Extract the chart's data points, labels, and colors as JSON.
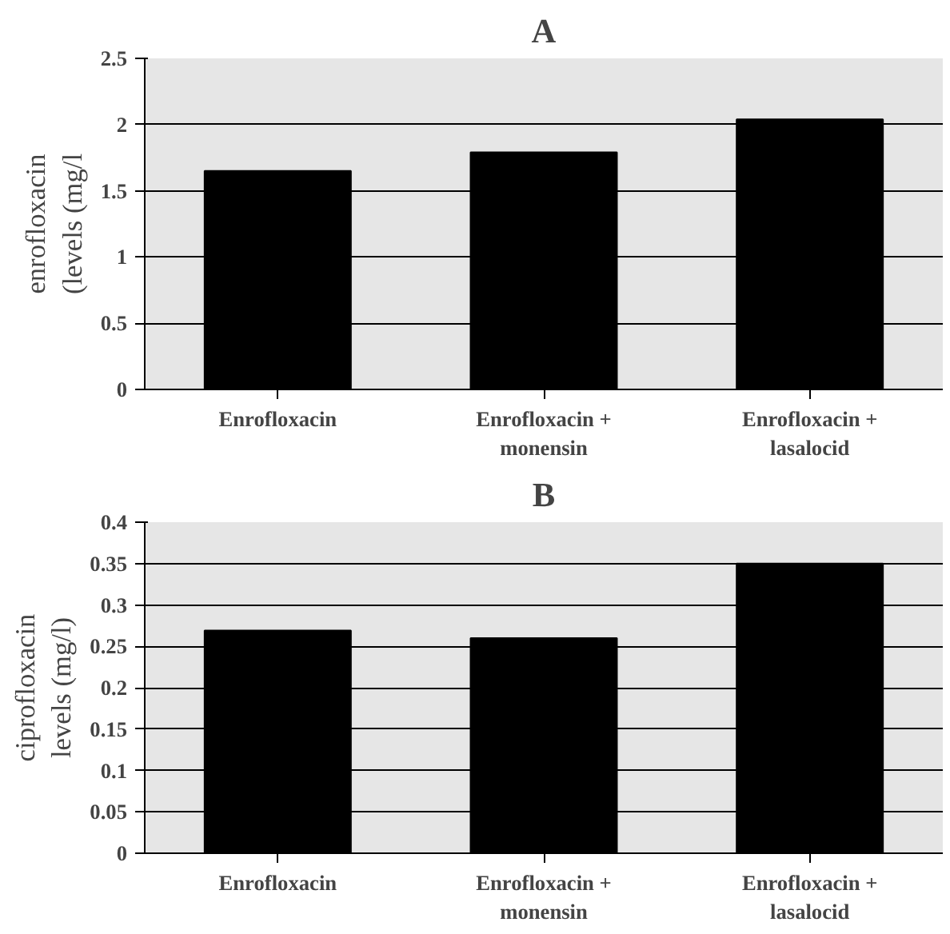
{
  "chart_data": [
    {
      "type": "bar",
      "title": "A",
      "ylabel": "enrofloxacin\n(levels (mg/l",
      "categories": [
        "Enrofloxacin",
        "Enrofloxacin +\nmonensin",
        "Enrofloxacin +\nlasalocid"
      ],
      "values": [
        1.65,
        1.79,
        2.04
      ],
      "color": "#000000",
      "ylim": [
        0,
        2.5
      ],
      "yticks": [
        0,
        0.5,
        1,
        {
          "value": 1.5,
          "label": "1.5"
        },
        2,
        {
          "value": 2.5,
          "label": "2.5"
        }
      ],
      "grid": "y"
    },
    {
      "type": "bar",
      "title": "B",
      "ylabel": "ciprofloxacin\nlevels (mg/l)",
      "categories": [
        "Enrofloxacin",
        "Enrofloxacin +\nmonensin",
        "Enrofloxacin +\nlasalocid"
      ],
      "values": [
        0.269,
        0.26,
        0.35
      ],
      "color": "#000000",
      "ylim": [
        0,
        0.4
      ],
      "yticks": [
        0,
        0.05,
        0.1,
        0.15,
        0.2,
        0.25,
        0.3,
        0.35,
        0.4
      ],
      "grid": "y"
    }
  ]
}
